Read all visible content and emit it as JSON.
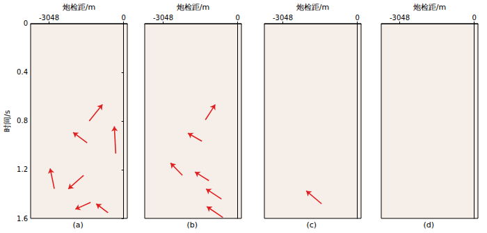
{
  "chart_data": [
    {
      "type": "image",
      "title": "(a)",
      "xlabel": "炮检距/m",
      "ylabel": "时间/s",
      "xlim": [
        -3800,
        150
      ],
      "xticks": [
        -3048,
        0
      ],
      "ylim": [
        0,
        1.6
      ],
      "yticks": [
        0,
        0.4,
        0.8,
        1.2,
        1.6
      ],
      "color": "#e02020",
      "arrows": [
        {
          "from": [
            -1406,
            0.8
          ],
          "to": [
            -865,
            0.665
          ]
        },
        {
          "from": [
            -1492,
            0.98
          ],
          "to": [
            -2062,
            0.894
          ]
        },
        {
          "from": [
            -323,
            1.067
          ],
          "to": [
            -380,
            0.844
          ]
        },
        {
          "from": [
            -2831,
            1.357
          ],
          "to": [
            -3002,
            1.19
          ]
        },
        {
          "from": [
            -1634,
            1.246
          ],
          "to": [
            -2261,
            1.358
          ]
        },
        {
          "from": [
            -1349,
            1.469
          ],
          "to": [
            -1976,
            1.525
          ]
        },
        {
          "from": [
            -637,
            1.553
          ],
          "to": [
            -1121,
            1.48
          ]
        }
      ]
    },
    {
      "type": "image",
      "title": "(b)",
      "xlabel": "炮检距/m",
      "tick_labels": "x",
      "xlim": [
        -3800,
        150
      ],
      "xticks": [
        -3048,
        0
      ],
      "ylim": [
        0,
        1.6
      ],
      "yticks": [
        0,
        0.4,
        0.8,
        1.2,
        1.6
      ],
      "color": "#e02020",
      "arrows": [
        {
          "from": [
            -1320,
            0.79
          ],
          "to": [
            -921,
            0.665
          ]
        },
        {
          "from": [
            -1463,
            0.966
          ],
          "to": [
            -2033,
            0.9
          ]
        },
        {
          "from": [
            -2261,
            1.246
          ],
          "to": [
            -2745,
            1.145
          ]
        },
        {
          "from": [
            -1178,
            1.29
          ],
          "to": [
            -1748,
            1.218
          ]
        },
        {
          "from": [
            -665,
            1.441
          ],
          "to": [
            -1292,
            1.358
          ]
        },
        {
          "from": [
            -608,
            1.592
          ],
          "to": [
            -1263,
            1.503
          ]
        }
      ]
    },
    {
      "type": "image",
      "title": "(c)",
      "xlabel": "炮检距/m",
      "tick_labels": "x",
      "xlim": [
        -3800,
        150
      ],
      "xticks": [
        -3048,
        0
      ],
      "ylim": [
        0,
        1.6
      ],
      "yticks": [
        0,
        0.4,
        0.8,
        1.2,
        1.6
      ],
      "color": "#e02020",
      "arrows": [
        {
          "from": [
            -1463,
            1.48
          ],
          "to": [
            -2090,
            1.374
          ]
        }
      ]
    },
    {
      "type": "image",
      "title": "(d)",
      "xlabel": "炮检距/m",
      "tick_labels": "x",
      "xlim": [
        -3800,
        150
      ],
      "xticks": [
        -3048,
        0
      ],
      "ylim": [
        0,
        1.6
      ],
      "yticks": [
        0,
        0.4,
        0.8,
        1.2,
        1.6
      ],
      "color": "#e02020",
      "arrows": []
    }
  ]
}
